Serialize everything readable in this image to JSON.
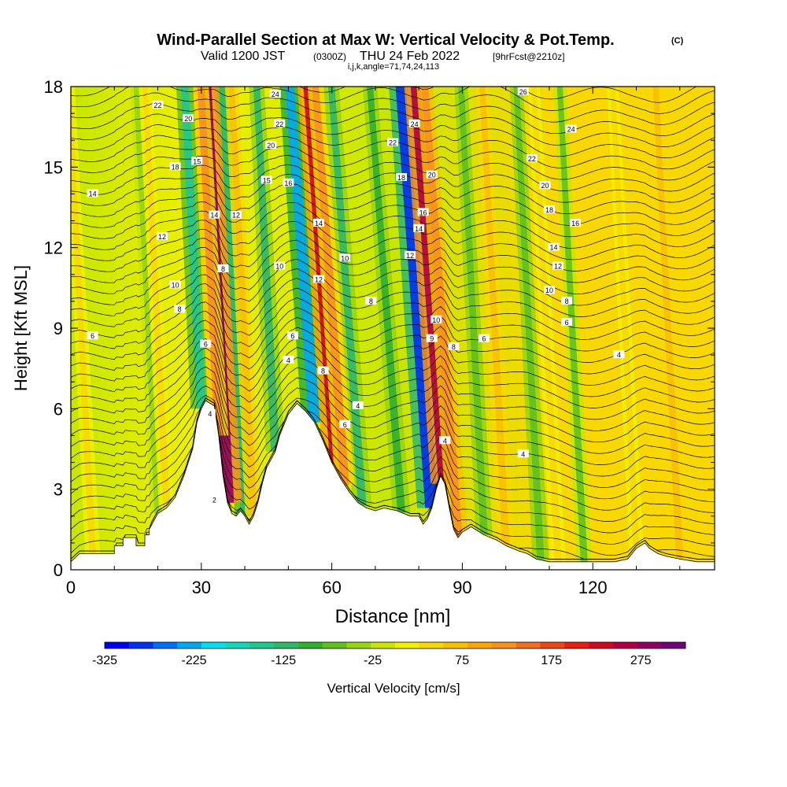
{
  "header": {
    "title_main": "Wind-Parallel Section at Max W: Vertical Velocity & Pot.Temp.",
    "title_mark": "(C)",
    "valid_prefix": "Valid 1200 JST",
    "valid_utc": "(0300Z)",
    "valid_date": "THU 24 Feb 2022",
    "forecast_tag": "[9hrFcst@2210z]",
    "grid_info": "i,j,k,angle=71,74,24,113"
  },
  "chart_data": {
    "type": "heatmap",
    "xlabel": "Distance [nm]",
    "ylabel": "Height [Kft MSL]",
    "xlim": [
      0,
      148
    ],
    "ylim": [
      0,
      18
    ],
    "x_ticks": [
      0,
      30,
      60,
      90,
      120
    ],
    "y_ticks": [
      0,
      3,
      6,
      9,
      12,
      15,
      18
    ],
    "colorbar": {
      "label": "Vertical Velocity [cm/s]",
      "range": [
        -325,
        325
      ],
      "ticks": [
        -325,
        -225,
        -125,
        -25,
        75,
        175,
        275
      ],
      "colors": [
        "#0000f0",
        "#0030f0",
        "#0070f0",
        "#00a8f0",
        "#00e0f0",
        "#10d8b8",
        "#20c890",
        "#30b868",
        "#30b030",
        "#60c020",
        "#98d410",
        "#c8e600",
        "#f0f000",
        "#f8d800",
        "#f8c000",
        "#f8a800",
        "#f89020",
        "#f07020",
        "#e84818",
        "#e82010",
        "#d00820",
        "#b00040",
        "#900060",
        "#70007c"
      ]
    },
    "terrain": [
      [
        0,
        0.3
      ],
      [
        2,
        0.6
      ],
      [
        10,
        0.6
      ],
      [
        10,
        0.9
      ],
      [
        12,
        0.9
      ],
      [
        12,
        1.2
      ],
      [
        15,
        1.2
      ],
      [
        15,
        0.9
      ],
      [
        17,
        0.9
      ],
      [
        17,
        1.3
      ],
      [
        18,
        1.3
      ],
      [
        18,
        1.5
      ],
      [
        19,
        1.8
      ],
      [
        20,
        2.1
      ],
      [
        22,
        2.3
      ],
      [
        24,
        2.7
      ],
      [
        26,
        3.5
      ],
      [
        28,
        4.5
      ],
      [
        29,
        5.5
      ],
      [
        30,
        6.0
      ],
      [
        31,
        6.3
      ],
      [
        33,
        6.1
      ],
      [
        34,
        5.0
      ],
      [
        35,
        3.5
      ],
      [
        36,
        2.5
      ],
      [
        37,
        2.1
      ],
      [
        38,
        2.0
      ],
      [
        39,
        2.2
      ],
      [
        40,
        2.0
      ],
      [
        41,
        1.7
      ],
      [
        42,
        2.0
      ],
      [
        43,
        2.5
      ],
      [
        44,
        3.2
      ],
      [
        45,
        3.8
      ],
      [
        47,
        4.4
      ],
      [
        48,
        5.0
      ],
      [
        50,
        5.8
      ],
      [
        52,
        6.2
      ],
      [
        54,
        5.9
      ],
      [
        56,
        5.5
      ],
      [
        58,
        4.8
      ],
      [
        60,
        4.0
      ],
      [
        62,
        3.4
      ],
      [
        64,
        2.9
      ],
      [
        66,
        2.5
      ],
      [
        68,
        2.3
      ],
      [
        70,
        2.2
      ],
      [
        72,
        2.3
      ],
      [
        75,
        2.2
      ],
      [
        78,
        2.0
      ],
      [
        80,
        2.0
      ],
      [
        81,
        1.7
      ],
      [
        82,
        1.9
      ],
      [
        83,
        2.3
      ],
      [
        84,
        3.0
      ],
      [
        85,
        3.5
      ],
      [
        86,
        3.2
      ],
      [
        87,
        2.3
      ],
      [
        88,
        1.5
      ],
      [
        89,
        1.2
      ],
      [
        90,
        1.4
      ],
      [
        92,
        1.6
      ],
      [
        95,
        1.3
      ],
      [
        98,
        1.1
      ],
      [
        100,
        0.9
      ],
      [
        103,
        0.7
      ],
      [
        105,
        0.6
      ],
      [
        107,
        0.4
      ],
      [
        110,
        0.3
      ],
      [
        117,
        0.3
      ],
      [
        120,
        0.3
      ],
      [
        125,
        0.3
      ],
      [
        128,
        0.4
      ],
      [
        130,
        0.8
      ],
      [
        132,
        1.0
      ],
      [
        133,
        0.8
      ],
      [
        135,
        0.6
      ],
      [
        137,
        0.5
      ],
      [
        140,
        0.4
      ],
      [
        144,
        0.3
      ],
      [
        148,
        0.3
      ]
    ],
    "updrafts": [
      {
        "x": 36,
        "w": 280
      },
      {
        "x": 34,
        "w": 120
      },
      {
        "x": 42,
        "w": 70
      },
      {
        "x": 61,
        "w": 220
      },
      {
        "x": 63,
        "w": 120
      },
      {
        "x": 86,
        "w": 260
      },
      {
        "x": 89,
        "w": 130
      },
      {
        "x": 100,
        "w": 70
      },
      {
        "x": 5,
        "w": 45
      },
      {
        "x": 22,
        "w": 50
      },
      {
        "x": 112,
        "w": 50
      },
      {
        "x": 140,
        "w": 70
      },
      {
        "x": 130,
        "w": 40
      }
    ],
    "downdrafts": [
      {
        "x": 30,
        "w": -150
      },
      {
        "x": 40,
        "w": -130
      },
      {
        "x": 56,
        "w": -220
      },
      {
        "x": 47,
        "w": -110
      },
      {
        "x": 83,
        "w": -280
      },
      {
        "x": 67,
        "w": -110
      },
      {
        "x": 76,
        "w": -90
      },
      {
        "x": 95,
        "w": -70
      },
      {
        "x": 108,
        "w": -70
      },
      {
        "x": 118,
        "w": -60
      },
      {
        "x": 20,
        "w": -40
      }
    ],
    "isentrope_labels": [
      {
        "x": 5,
        "y": 14,
        "text": "14"
      },
      {
        "x": 20,
        "y": 17.3,
        "text": "22"
      },
      {
        "x": 27,
        "y": 16.8,
        "text": "20"
      },
      {
        "x": 24,
        "y": 15,
        "text": "18"
      },
      {
        "x": 29,
        "y": 15.2,
        "text": "15"
      },
      {
        "x": 33,
        "y": 13.2,
        "text": "14"
      },
      {
        "x": 38,
        "y": 13.2,
        "text": "12"
      },
      {
        "x": 45,
        "y": 14.5,
        "text": "15"
      },
      {
        "x": 47,
        "y": 17.7,
        "text": "24"
      },
      {
        "x": 48,
        "y": 16.6,
        "text": "22"
      },
      {
        "x": 46,
        "y": 15.8,
        "text": "20"
      },
      {
        "x": 50,
        "y": 14.4,
        "text": "16"
      },
      {
        "x": 57,
        "y": 12.9,
        "text": "14"
      },
      {
        "x": 21,
        "y": 12.4,
        "text": "12"
      },
      {
        "x": 24,
        "y": 10.6,
        "text": "10"
      },
      {
        "x": 25,
        "y": 9.7,
        "text": "8"
      },
      {
        "x": 5,
        "y": 8.7,
        "text": "6"
      },
      {
        "x": 35,
        "y": 11.2,
        "text": "8"
      },
      {
        "x": 48,
        "y": 11.3,
        "text": "10"
      },
      {
        "x": 51,
        "y": 8.7,
        "text": "6"
      },
      {
        "x": 50,
        "y": 7.8,
        "text": "4"
      },
      {
        "x": 57,
        "y": 10.8,
        "text": "12"
      },
      {
        "x": 63,
        "y": 11.6,
        "text": "10"
      },
      {
        "x": 69,
        "y": 10.0,
        "text": "8"
      },
      {
        "x": 58,
        "y": 7.4,
        "text": "8"
      },
      {
        "x": 66,
        "y": 6.1,
        "text": "4"
      },
      {
        "x": 63,
        "y": 5.4,
        "text": "6"
      },
      {
        "x": 31,
        "y": 8.4,
        "text": "6"
      },
      {
        "x": 32,
        "y": 5.8,
        "text": "4"
      },
      {
        "x": 33,
        "y": 2.6,
        "text": "2"
      },
      {
        "x": 74,
        "y": 15.9,
        "text": "22"
      },
      {
        "x": 79,
        "y": 16.6,
        "text": "24"
      },
      {
        "x": 76,
        "y": 14.6,
        "text": "18"
      },
      {
        "x": 83,
        "y": 14.7,
        "text": "20"
      },
      {
        "x": 81,
        "y": 13.3,
        "text": "16"
      },
      {
        "x": 80,
        "y": 12.7,
        "text": "14"
      },
      {
        "x": 78,
        "y": 11.7,
        "text": "12"
      },
      {
        "x": 84,
        "y": 9.3,
        "text": "10"
      },
      {
        "x": 83,
        "y": 8.6,
        "text": "9"
      },
      {
        "x": 88,
        "y": 8.3,
        "text": "8"
      },
      {
        "x": 95,
        "y": 8.6,
        "text": "6"
      },
      {
        "x": 86,
        "y": 4.8,
        "text": "4"
      },
      {
        "x": 104,
        "y": 17.8,
        "text": "26"
      },
      {
        "x": 115,
        "y": 16.4,
        "text": "24"
      },
      {
        "x": 106,
        "y": 15.3,
        "text": "22"
      },
      {
        "x": 109,
        "y": 14.3,
        "text": "20"
      },
      {
        "x": 110,
        "y": 13.4,
        "text": "18"
      },
      {
        "x": 116,
        "y": 12.9,
        "text": "16"
      },
      {
        "x": 111,
        "y": 12.0,
        "text": "14"
      },
      {
        "x": 112,
        "y": 11.3,
        "text": "12"
      },
      {
        "x": 110,
        "y": 10.4,
        "text": "10"
      },
      {
        "x": 114,
        "y": 10.0,
        "text": "8"
      },
      {
        "x": 114,
        "y": 9.2,
        "text": "6"
      },
      {
        "x": 104,
        "y": 4.3,
        "text": "4"
      },
      {
        "x": 126,
        "y": 8.0,
        "text": "4"
      }
    ]
  }
}
